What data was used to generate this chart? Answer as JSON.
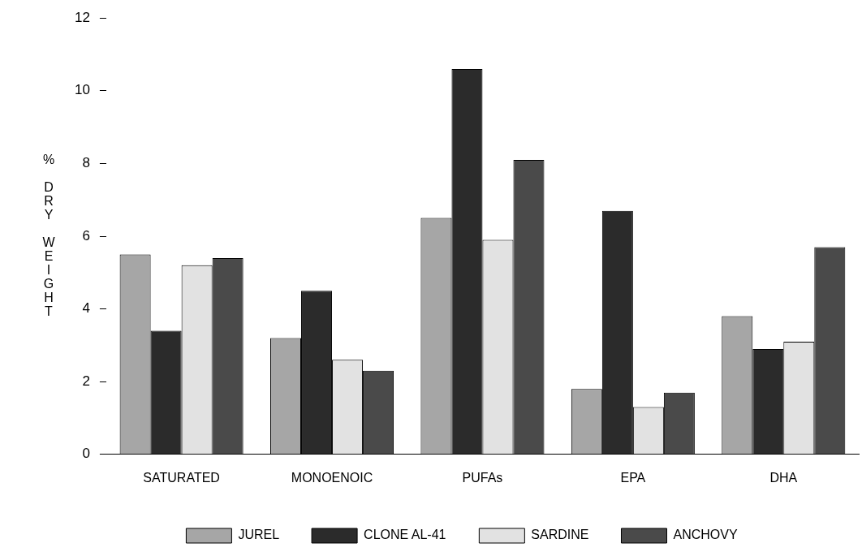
{
  "chart_data": {
    "type": "bar",
    "ylabel": "% DRY WEIGHT",
    "categories": [
      "SATURATED",
      "MONOENOIC",
      "PUFAs",
      "EPA",
      "DHA"
    ],
    "series": [
      {
        "name": "JUREL",
        "color": "#a6a6a6",
        "values": [
          5.5,
          3.2,
          6.5,
          1.8,
          3.8
        ]
      },
      {
        "name": "CLONE AL-41",
        "color": "#2b2b2b",
        "values": [
          3.4,
          4.5,
          10.6,
          6.7,
          2.9
        ]
      },
      {
        "name": "SARDINE",
        "color": "#e2e2e2",
        "values": [
          5.2,
          2.6,
          5.9,
          1.3,
          3.1
        ]
      },
      {
        "name": "ANCHOVY",
        "color": "#4a4a4a",
        "values": [
          5.4,
          2.3,
          8.1,
          1.7,
          5.7
        ]
      }
    ],
    "ylim": [
      0,
      12
    ],
    "yticks": [
      0,
      2,
      4,
      6,
      8,
      10,
      12
    ],
    "grid": false,
    "legend": "bottom"
  }
}
